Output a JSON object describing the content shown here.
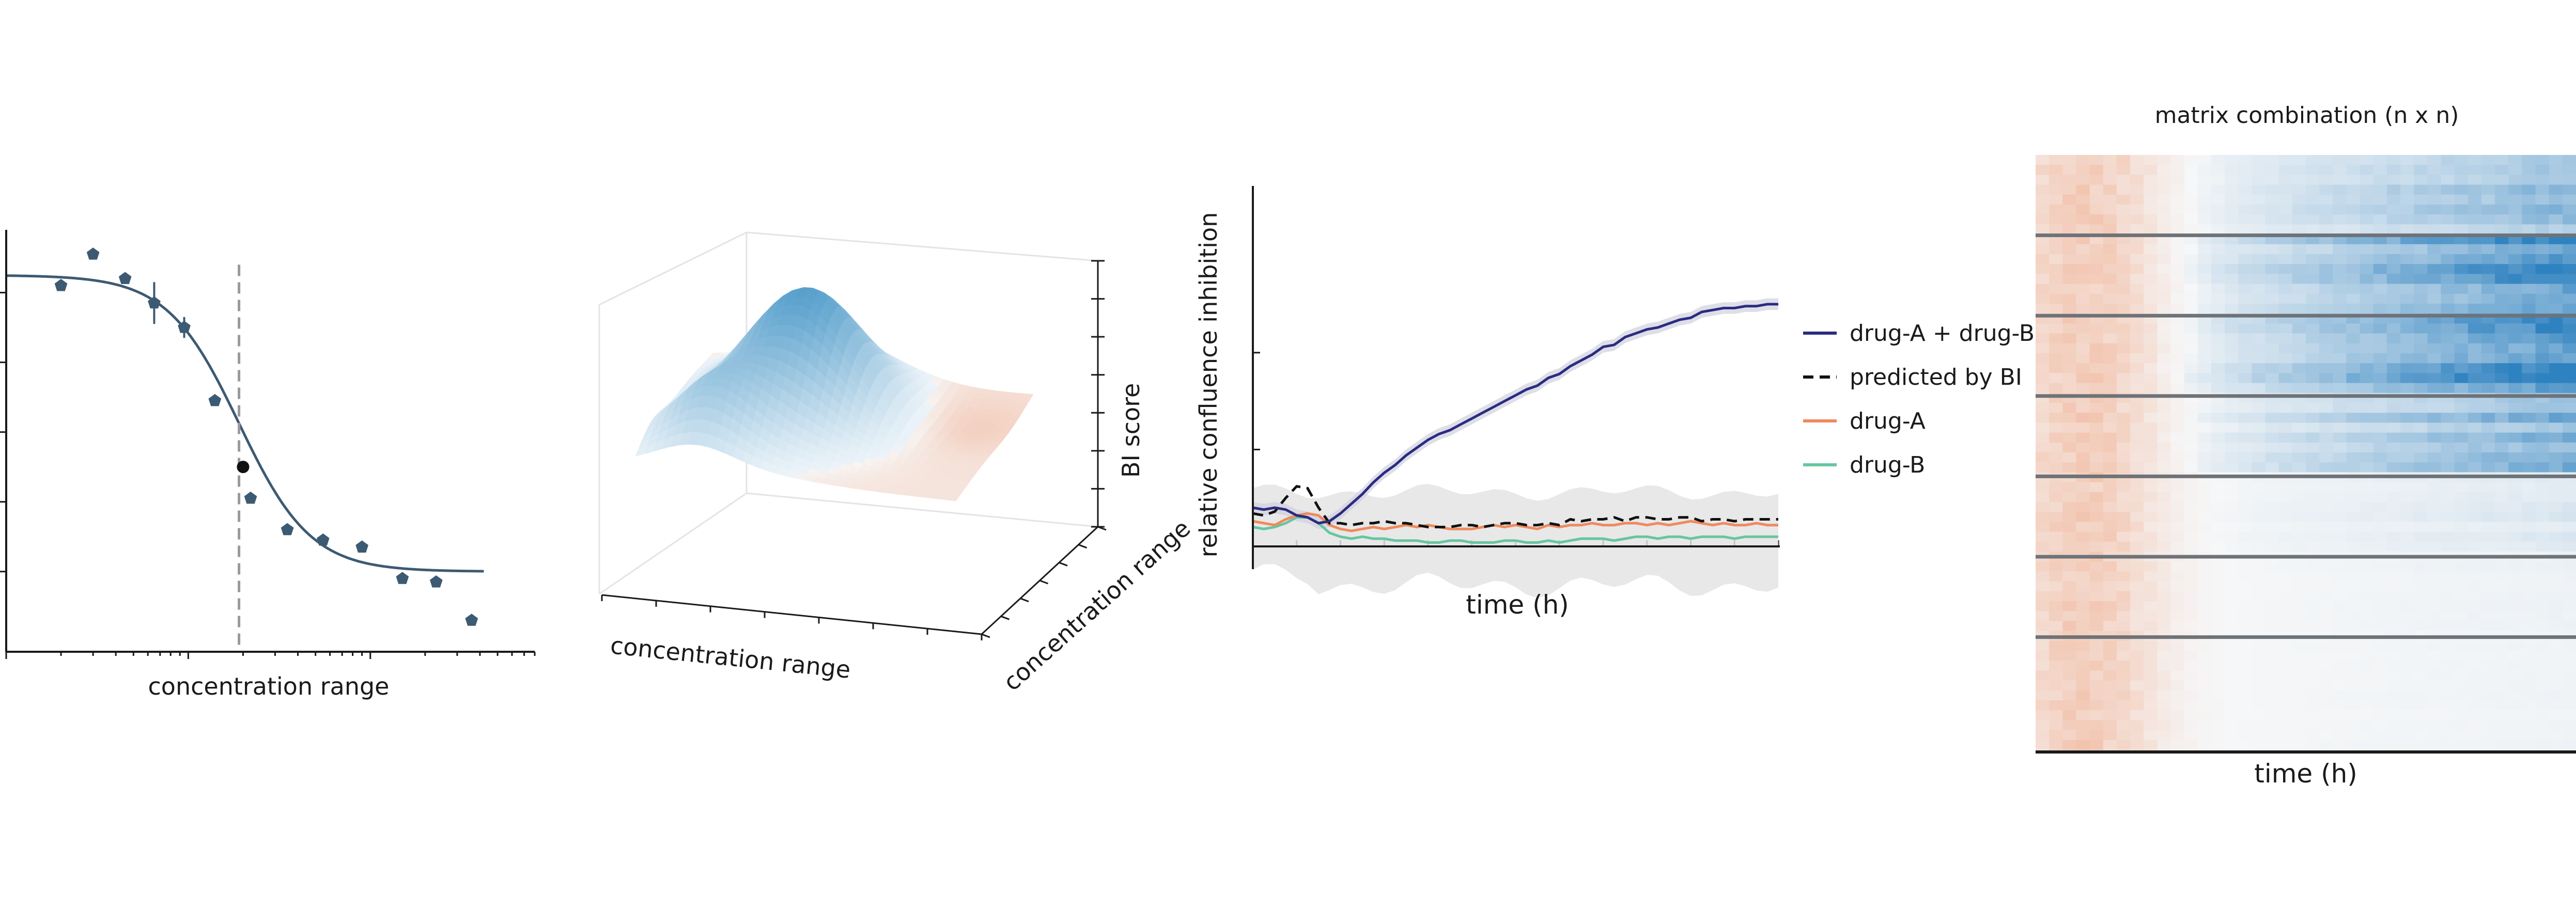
{
  "colors": {
    "dose_curve": "#3d5a73",
    "dose_points": "#3d5a73",
    "ec50_point": "#111111",
    "ec50_line": "#999999",
    "surface_high": "#4a98c8",
    "surface_low": "#f2c4b0",
    "combo": "#2b2b80",
    "predicted": "#111111",
    "drugA": "#f08a5d",
    "drugB": "#66c6a0",
    "band": "#e4e4e4",
    "heat_pos": "#2f82c0",
    "heat_neg": "#ef9a72",
    "separator": "#6e7378"
  },
  "chart_data": [
    {
      "type": "scatter",
      "xscale": "log",
      "xlabel": "concentration range",
      "ylabel": "",
      "x": [
        0.02,
        0.03,
        0.045,
        0.065,
        0.095,
        0.14,
        0.2,
        0.22,
        0.35,
        0.55,
        0.9,
        1.5,
        2.3,
        3.6
      ],
      "y": [
        1.02,
        1.11,
        1.04,
        0.97,
        0.9,
        0.69,
        0.5,
        0.41,
        0.32,
        0.29,
        0.27,
        0.18,
        0.17,
        0.06
      ],
      "yerr": [
        0,
        0,
        0,
        0.06,
        0.03,
        0,
        0,
        0,
        0,
        0,
        0,
        0,
        0,
        0
      ],
      "highlight_index": 6,
      "fit": {
        "top": 1.05,
        "bottom": 0.2,
        "ec50": 0.19,
        "hill": 2.2
      },
      "ec50_marker_x": 0.19,
      "ylim": [
        -0.03,
        1.18
      ],
      "xlim": [
        0.01,
        8
      ],
      "n_yticks": 5
    },
    {
      "type": "surface3d",
      "xlabel": "concentration range",
      "ylabel": "concentration range",
      "zlabel": "BI score"
    },
    {
      "type": "line",
      "xlabel": "time (h)",
      "ylabel": "relative confluence inhibition",
      "x": [
        0,
        1,
        2,
        3,
        4,
        5,
        6,
        7,
        8,
        9,
        10,
        11,
        12,
        13,
        14,
        15,
        16,
        17,
        18,
        19,
        20,
        21,
        22,
        23,
        24,
        25,
        26,
        27,
        28,
        29,
        30,
        31,
        32,
        33,
        34,
        35,
        36,
        37,
        38,
        39,
        40,
        41,
        42,
        43,
        44,
        45,
        46,
        47,
        48
      ],
      "series": [
        {
          "name": "drug-A + drug-B",
          "values": [
            0.2,
            0.19,
            0.2,
            0.19,
            0.16,
            0.15,
            0.12,
            0.13,
            0.17,
            0.22,
            0.27,
            0.33,
            0.38,
            0.42,
            0.47,
            0.51,
            0.55,
            0.58,
            0.6,
            0.63,
            0.66,
            0.69,
            0.72,
            0.75,
            0.78,
            0.81,
            0.83,
            0.87,
            0.89,
            0.93,
            0.96,
            0.99,
            1.03,
            1.04,
            1.08,
            1.1,
            1.12,
            1.13,
            1.15,
            1.17,
            1.18,
            1.21,
            1.22,
            1.23,
            1.23,
            1.24,
            1.24,
            1.25,
            1.25
          ]
        },
        {
          "name": "predicted by BI",
          "values": [
            0.17,
            0.16,
            0.18,
            0.25,
            0.31,
            0.3,
            0.2,
            0.12,
            0.12,
            0.11,
            0.12,
            0.12,
            0.13,
            0.12,
            0.12,
            0.11,
            0.1,
            0.1,
            0.1,
            0.11,
            0.11,
            0.1,
            0.11,
            0.12,
            0.12,
            0.11,
            0.11,
            0.12,
            0.11,
            0.14,
            0.13,
            0.14,
            0.14,
            0.15,
            0.13,
            0.15,
            0.15,
            0.14,
            0.14,
            0.15,
            0.15,
            0.13,
            0.14,
            0.14,
            0.13,
            0.14,
            0.14,
            0.14,
            0.14
          ]
        },
        {
          "name": "drug-A",
          "values": [
            0.13,
            0.12,
            0.11,
            0.14,
            0.16,
            0.17,
            0.16,
            0.11,
            0.09,
            0.08,
            0.09,
            0.1,
            0.09,
            0.1,
            0.11,
            0.1,
            0.11,
            0.1,
            0.09,
            0.09,
            0.09,
            0.1,
            0.11,
            0.1,
            0.11,
            0.1,
            0.09,
            0.11,
            0.1,
            0.11,
            0.11,
            0.12,
            0.11,
            0.11,
            0.12,
            0.12,
            0.11,
            0.12,
            0.11,
            0.12,
            0.13,
            0.12,
            0.11,
            0.12,
            0.11,
            0.11,
            0.12,
            0.11,
            0.11
          ]
        },
        {
          "name": "drug-B",
          "values": [
            0.1,
            0.09,
            0.1,
            0.12,
            0.15,
            0.15,
            0.12,
            0.07,
            0.05,
            0.04,
            0.05,
            0.04,
            0.04,
            0.03,
            0.03,
            0.03,
            0.02,
            0.02,
            0.03,
            0.03,
            0.02,
            0.02,
            0.02,
            0.03,
            0.03,
            0.02,
            0.02,
            0.03,
            0.02,
            0.03,
            0.04,
            0.04,
            0.04,
            0.03,
            0.04,
            0.05,
            0.05,
            0.04,
            0.05,
            0.05,
            0.04,
            0.05,
            0.05,
            0.05,
            0.04,
            0.05,
            0.05,
            0.05,
            0.05
          ]
        }
      ],
      "band": {
        "upper": 0.28,
        "lower": -0.2
      },
      "ylim": [
        -0.25,
        1.6
      ],
      "xlim": [
        0,
        48
      ],
      "n_yticks": 2,
      "n_xticks": 12,
      "legend": "right"
    },
    {
      "type": "heatmap",
      "title": "matrix combination (n x n)",
      "xlabel": "time (h)",
      "rows": 60,
      "cols": 40,
      "groups": 7,
      "group_size": 8,
      "group_amplitude": [
        0.45,
        0.9,
        1.0,
        0.55,
        0.12,
        0.05,
        0.03
      ],
      "value_range": [
        -1,
        1
      ]
    }
  ]
}
